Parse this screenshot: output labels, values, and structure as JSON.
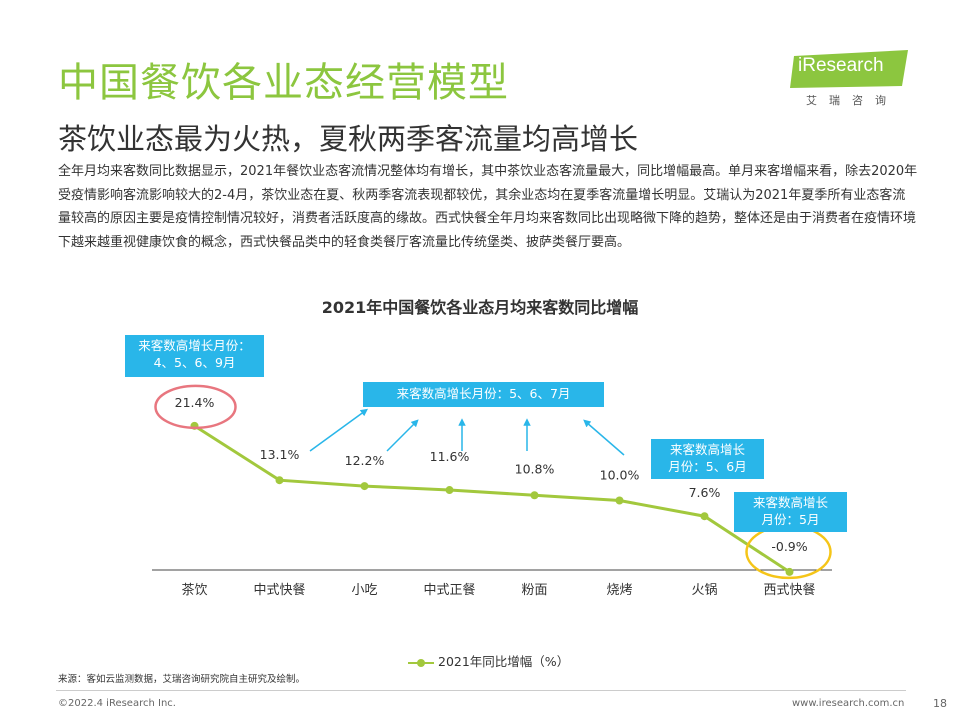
{
  "header": {
    "title": "中国餐饮各业态经营模型",
    "subtitle": "茶饮业态最为火热，夏秋两季客流量均高增长",
    "body": "全年月均来客数同比数据显示，2021年餐饮业态客流情况整体均有增长，其中茶饮业态客流量最大，同比增幅最高。单月来客增幅来看，除去2020年受疫情影响客流影响较大的2-4月，茶饮业态在夏、秋两季客流表现都较优，其余业态均在夏季客流量增长明显。艾瑞认为2021年夏季所有业态客流量较高的原因主要是疫情控制情况较好，消费者活跃度高的缘故。西式快餐全年月均来客数同比出现略微下降的趋势，整体还是由于消费者在疫情环境下越来越重视健康饮食的概念，西式快餐品类中的轻食类餐厅客流量比传统堡类、披萨类餐厅要高。"
  },
  "logo": {
    "name": "iResearch",
    "sub": "艾瑞咨询"
  },
  "chart_data": {
    "type": "line",
    "title": "2021年中国餐饮各业态月均来客数同比增幅",
    "categories": [
      "茶饮",
      "中式快餐",
      "小吃",
      "中式正餐",
      "粉面",
      "烧烤",
      "火锅",
      "西式快餐"
    ],
    "series": [
      {
        "name": "2021年同比增幅（%）",
        "values": [
          21.4,
          13.1,
          12.2,
          11.6,
          10.8,
          10.0,
          7.6,
          -0.9
        ]
      }
    ],
    "data_labels": [
      "21.4%",
      "13.1%",
      "12.2%",
      "11.6%",
      "10.8%",
      "10.0%",
      "7.6%",
      "-0.9%"
    ],
    "legend_position": "bottom",
    "grid": false,
    "series_color": "#a2c83d",
    "annotations": [
      {
        "text_lines": [
          "来客数高增长月份：",
          "4、5、6、9月"
        ]
      },
      {
        "text_lines": [
          "来客数高增长月份：5、6、7月"
        ]
      },
      {
        "text_lines": [
          "来客数高增长",
          "月份：5、6月"
        ]
      },
      {
        "text_lines": [
          "来客数高增长",
          "月份：5月"
        ]
      }
    ]
  },
  "footer": {
    "source": "来源：客如云监测数据，艾瑞咨询研究院自主研究及绘制。",
    "copyright": "©2022.4 iResearch Inc.",
    "site": "www.iresearch.com.cn",
    "page": "18"
  },
  "colors": {
    "accent": "#8cc63f",
    "callout": "#29b6e9",
    "circle_red": "#e8767f",
    "circle_yellow": "#f5c518"
  }
}
